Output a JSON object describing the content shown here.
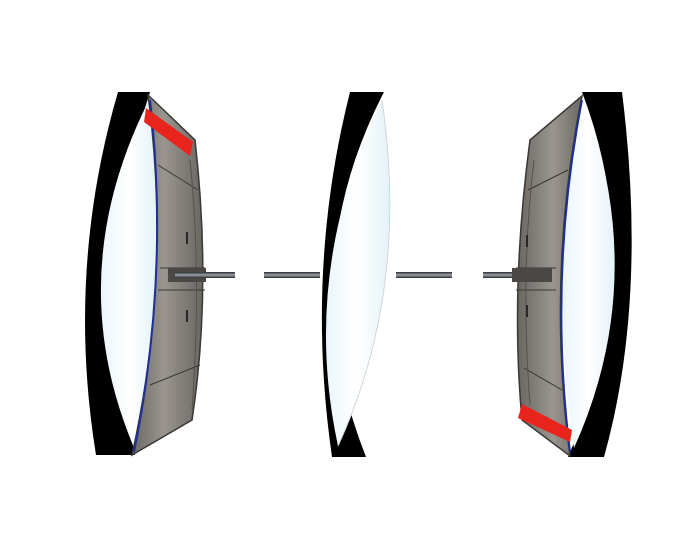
{
  "scene": {
    "background": "#ffffff",
    "colors": {
      "lens_glass": "#f2f9fc",
      "lens_edge": "#000000",
      "housing_fill": "#8c8782",
      "housing_dark": "#5f5b57",
      "housing_seam": "#3a3734",
      "rod": "#6f7377",
      "rod_dark": "#26292c",
      "accent_red": "#e8241c",
      "accent_blue": "#1c2f9a"
    },
    "components": [
      {
        "name": "left-lens-assembly",
        "type": "lens-with-housing",
        "has_red_band": true
      },
      {
        "name": "center-lens",
        "type": "biconvex-lens",
        "has_red_band": false
      },
      {
        "name": "right-lens-assembly",
        "type": "lens-with-housing",
        "has_red_band": true
      }
    ],
    "connectors": [
      {
        "name": "left-connector-rod"
      },
      {
        "name": "center-left-connector-rod"
      },
      {
        "name": "center-right-connector-rod"
      },
      {
        "name": "right-connector-rod"
      }
    ]
  }
}
